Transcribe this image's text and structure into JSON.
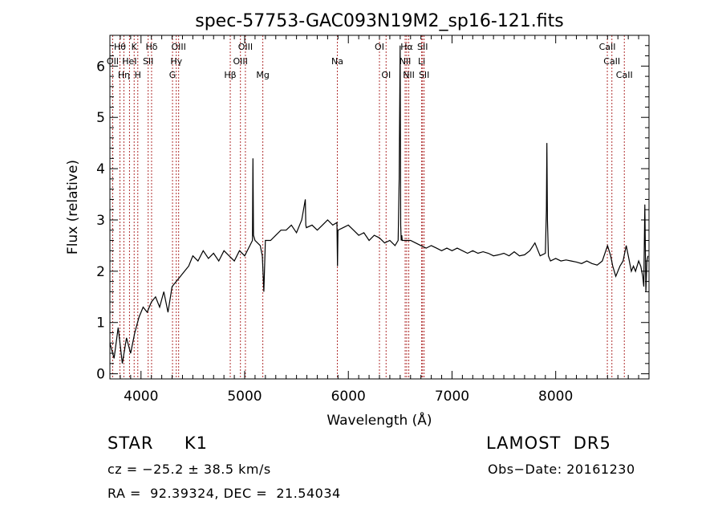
{
  "chart_data": {
    "type": "line",
    "title": "spec-57753-GAC093N19M2_sp16-121.fits",
    "xlabel": "Wavelength (Å)",
    "ylabel": "Flux (relative)",
    "xlim": [
      3700,
      8900
    ],
    "ylim": [
      -0.1,
      6.6
    ],
    "xticks": [
      4000,
      5000,
      6000,
      7000,
      8000
    ],
    "yticks": [
      0,
      1,
      2,
      3,
      4,
      5,
      6
    ],
    "grid": false,
    "series": [
      {
        "x": [
          3700,
          3740,
          3780,
          3820,
          3860,
          3900,
          3940,
          3980,
          4020,
          4060,
          4100,
          4140,
          4180,
          4220,
          4260,
          4300,
          4340,
          4380,
          4420,
          4460,
          4500,
          4550,
          4600,
          4650,
          4700,
          4750,
          4800,
          4850,
          4900,
          4950,
          5000,
          5050,
          5075,
          5080,
          5085,
          5100,
          5150,
          5170,
          5185,
          5200,
          5250,
          5300,
          5350,
          5400,
          5450,
          5500,
          5550,
          5585,
          5590,
          5595,
          5650,
          5700,
          5750,
          5800,
          5850,
          5890,
          5895,
          5900,
          5950,
          6000,
          6050,
          6100,
          6150,
          6200,
          6250,
          6300,
          6350,
          6400,
          6450,
          6480,
          6490,
          6500,
          6505,
          6510,
          6515,
          6520,
          6550,
          6600,
          6650,
          6700,
          6750,
          6800,
          6850,
          6900,
          6950,
          7000,
          7050,
          7100,
          7150,
          7200,
          7250,
          7300,
          7350,
          7400,
          7450,
          7500,
          7550,
          7600,
          7650,
          7700,
          7750,
          7800,
          7850,
          7900,
          7910,
          7915,
          7920,
          7930,
          7950,
          8000,
          8050,
          8100,
          8150,
          8200,
          8250,
          8300,
          8350,
          8400,
          8450,
          8500,
          8530,
          8550,
          8580,
          8600,
          8620,
          8650,
          8680,
          8700,
          8730,
          8750,
          8770,
          8800,
          8820,
          8840,
          8850,
          8860,
          8870,
          8880,
          8890
        ],
        "y": [
          0.6,
          0.3,
          0.9,
          0.2,
          0.7,
          0.4,
          0.8,
          1.1,
          1.3,
          1.2,
          1.4,
          1.5,
          1.3,
          1.6,
          1.2,
          1.7,
          1.8,
          1.9,
          2.0,
          2.1,
          2.3,
          2.2,
          2.4,
          2.25,
          2.35,
          2.2,
          2.4,
          2.3,
          2.2,
          2.4,
          2.3,
          2.5,
          2.6,
          4.2,
          2.7,
          2.6,
          2.5,
          2.3,
          1.6,
          2.6,
          2.6,
          2.7,
          2.8,
          2.8,
          2.9,
          2.75,
          3.0,
          3.4,
          2.9,
          2.85,
          2.9,
          2.8,
          2.9,
          3.0,
          2.9,
          2.95,
          2.1,
          2.8,
          2.85,
          2.9,
          2.8,
          2.7,
          2.75,
          2.6,
          2.7,
          2.65,
          2.55,
          2.6,
          2.5,
          2.6,
          3.8,
          6.4,
          2.9,
          2.6,
          2.7,
          2.6,
          2.6,
          2.6,
          2.55,
          2.5,
          2.45,
          2.5,
          2.45,
          2.4,
          2.45,
          2.4,
          2.45,
          2.4,
          2.35,
          2.4,
          2.35,
          2.38,
          2.35,
          2.3,
          2.32,
          2.35,
          2.3,
          2.38,
          2.3,
          2.32,
          2.4,
          2.55,
          2.3,
          2.35,
          3.2,
          4.5,
          3.0,
          2.3,
          2.2,
          2.25,
          2.2,
          2.22,
          2.2,
          2.18,
          2.15,
          2.2,
          2.15,
          2.12,
          2.2,
          2.5,
          2.3,
          2.1,
          1.9,
          2.0,
          2.1,
          2.2,
          2.5,
          2.3,
          2.0,
          2.1,
          2.0,
          2.2,
          2.1,
          1.9,
          1.7,
          3.3,
          1.6,
          2.2,
          2.3
        ]
      }
    ],
    "lines": [
      {
        "wave": 3727,
        "label": "OII",
        "row": 2
      },
      {
        "wave": 3797,
        "label": "Hθ",
        "row": 1
      },
      {
        "wave": 3835,
        "label": "Hη",
        "row": 3
      },
      {
        "wave": 3889,
        "label": "HeI",
        "row": 2
      },
      {
        "wave": 3934,
        "label": "K",
        "row": 1
      },
      {
        "wave": 3969,
        "label": "H",
        "row": 3
      },
      {
        "wave": 4069,
        "label": "SII",
        "row": 2
      },
      {
        "wave": 4102,
        "label": "Hδ",
        "row": 1
      },
      {
        "wave": 4304,
        "label": "G",
        "row": 3
      },
      {
        "wave": 4340,
        "label": "Hγ",
        "row": 2
      },
      {
        "wave": 4363,
        "label": "OIII",
        "row": 1
      },
      {
        "wave": 4861,
        "label": "Hβ",
        "row": 3
      },
      {
        "wave": 4959,
        "label": "OIII",
        "row": 2
      },
      {
        "wave": 5007,
        "label": "OIII",
        "row": 1
      },
      {
        "wave": 5175,
        "label": "Mg",
        "row": 3
      },
      {
        "wave": 5894,
        "label": "Na",
        "row": 2
      },
      {
        "wave": 6300,
        "label": "OI",
        "row": 1
      },
      {
        "wave": 6364,
        "label": "OI",
        "row": 3
      },
      {
        "wave": 6548,
        "label": "NII",
        "row": 2
      },
      {
        "wave": 6563,
        "label": "Hα",
        "row": 1
      },
      {
        "wave": 6583,
        "label": "NII",
        "row": 3
      },
      {
        "wave": 6707,
        "label": "Li",
        "row": 2
      },
      {
        "wave": 6716,
        "label": "SII",
        "row": 1
      },
      {
        "wave": 6731,
        "label": "SII",
        "row": 3
      },
      {
        "wave": 8498,
        "label": "CaII",
        "row": 1
      },
      {
        "wave": 8542,
        "label": "CaII",
        "row": 2
      },
      {
        "wave": 8662,
        "label": "CaII",
        "row": 3
      }
    ]
  },
  "info": {
    "object_class": "STAR     K1",
    "survey": "LAMOST  DR5",
    "cz": "cz = −25.2 ± 38.5 km/s",
    "obs_date": "Obs−Date: 20161230",
    "radec": "RA =  92.39324, DEC =  21.54034"
  },
  "colors": {
    "spectrum": "#000000",
    "line_marker": "#b03030",
    "axes": "#000000"
  }
}
